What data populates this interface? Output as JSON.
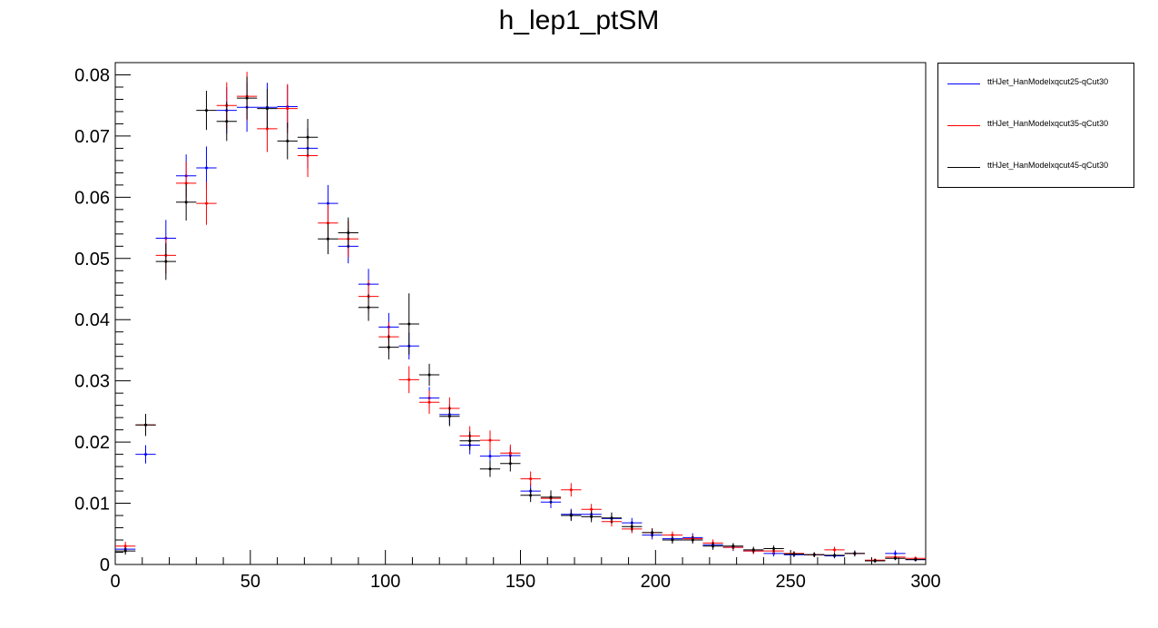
{
  "chart_data": {
    "type": "scatter",
    "title": "h_lep1_ptSM",
    "xlabel": "",
    "ylabel": "",
    "xlim": [
      0,
      300
    ],
    "ylim": [
      0,
      0.082
    ],
    "xticks": [
      0,
      50,
      100,
      150,
      200,
      250,
      300
    ],
    "xtick_labels": [
      "0",
      "50",
      "100",
      "150",
      "200",
      "250",
      "300"
    ],
    "yticks": [
      0,
      0.01,
      0.02,
      0.03,
      0.04,
      0.05,
      0.06,
      0.07,
      0.08
    ],
    "ytick_labels": [
      "0",
      "0.01",
      "0.02",
      "0.03",
      "0.04",
      "0.05",
      "0.06",
      "0.07",
      "0.08"
    ],
    "bin_width": 7.5,
    "x": [
      3.75,
      11.25,
      18.75,
      26.25,
      33.75,
      41.25,
      48.75,
      56.25,
      63.75,
      71.25,
      78.75,
      86.25,
      93.75,
      101.25,
      108.75,
      116.25,
      123.75,
      131.25,
      138.75,
      146.25,
      153.75,
      161.25,
      168.75,
      176.25,
      183.75,
      191.25,
      198.75,
      206.25,
      213.75,
      221.25,
      228.75,
      236.25,
      243.75,
      251.25,
      258.75,
      266.25,
      273.75,
      281.25,
      288.75,
      296.25
    ],
    "legend_position": "top-right, outside plot",
    "grid": false,
    "series": [
      {
        "name": "ttHJet_HanModelxqcut25-qCut30",
        "color": "#0000ff",
        "values": [
          0.0025,
          0.018,
          0.0533,
          0.0635,
          0.0648,
          0.0742,
          0.0747,
          0.0747,
          0.0748,
          0.068,
          0.059,
          0.052,
          0.0458,
          0.0388,
          0.0357,
          0.0272,
          0.0245,
          0.0195,
          0.0177,
          0.0178,
          0.012,
          0.0102,
          0.0082,
          0.0082,
          0.0075,
          0.0068,
          0.0048,
          0.0042,
          0.0044,
          0.0032,
          0.0028,
          0.0022,
          0.0018,
          0.0016,
          0.0016,
          0.0014,
          0.0018,
          0.0006,
          0.0018,
          0.0008
        ],
        "errors": [
          0.0006,
          0.0015,
          0.003,
          0.0035,
          0.0035,
          0.0038,
          0.004,
          0.004,
          0.0035,
          0.0033,
          0.003,
          0.0028,
          0.0025,
          0.0023,
          0.0022,
          0.0018,
          0.0017,
          0.0015,
          0.0015,
          0.0014,
          0.0012,
          0.001,
          0.0009,
          0.0009,
          0.0009,
          0.0008,
          0.0007,
          0.0007,
          0.0007,
          0.0006,
          0.0006,
          0.0005,
          0.0005,
          0.0004,
          0.0004,
          0.0004,
          0.0005,
          0.0003,
          0.0005,
          0.0003
        ]
      },
      {
        "name": "ttHJet_HanModelxqcut35-qCut30",
        "color": "#ff0000",
        "values": [
          0.003,
          0.0228,
          0.0505,
          0.0623,
          0.059,
          0.075,
          0.0765,
          0.0712,
          0.0745,
          0.0668,
          0.0558,
          0.0532,
          0.0438,
          0.0372,
          0.0302,
          0.0265,
          0.0255,
          0.021,
          0.0203,
          0.0182,
          0.014,
          0.0108,
          0.0122,
          0.009,
          0.007,
          0.0058,
          0.0052,
          0.0048,
          0.0042,
          0.0035,
          0.0028,
          0.0022,
          0.0022,
          0.0018,
          0.0016,
          0.0024,
          0.0018,
          0.0007,
          0.0012,
          0.001
        ],
        "errors": [
          0.0007,
          0.0018,
          0.003,
          0.0035,
          0.0035,
          0.0038,
          0.004,
          0.0038,
          0.004,
          0.0035,
          0.003,
          0.003,
          0.0027,
          0.0024,
          0.0022,
          0.0019,
          0.0018,
          0.0016,
          0.0016,
          0.0014,
          0.0012,
          0.001,
          0.0011,
          0.0009,
          0.0008,
          0.0007,
          0.0007,
          0.0006,
          0.0006,
          0.0006,
          0.0005,
          0.0005,
          0.0005,
          0.0004,
          0.0004,
          0.0005,
          0.0004,
          0.0003,
          0.0003,
          0.0003
        ]
      },
      {
        "name": "ttHJet_HanModelxqcut45-qCut30",
        "color": "#000000",
        "values": [
          0.0022,
          0.0228,
          0.0495,
          0.0592,
          0.0742,
          0.0724,
          0.0762,
          0.0745,
          0.0692,
          0.0698,
          0.0532,
          0.0542,
          0.042,
          0.0355,
          0.0393,
          0.031,
          0.0242,
          0.0202,
          0.0156,
          0.0165,
          0.0113,
          0.011,
          0.008,
          0.0078,
          0.0076,
          0.0062,
          0.0052,
          0.004,
          0.004,
          0.003,
          0.003,
          0.0024,
          0.0026,
          0.0017,
          0.0016,
          0.0015,
          0.0018,
          0.0006,
          0.001,
          0.0008
        ],
        "errors": [
          0.0006,
          0.0018,
          0.003,
          0.003,
          0.0032,
          0.0032,
          0.0035,
          0.0032,
          0.003,
          0.003,
          0.0025,
          0.0025,
          0.0022,
          0.002,
          0.005,
          0.0018,
          0.0016,
          0.0015,
          0.0013,
          0.0013,
          0.0011,
          0.0011,
          0.0009,
          0.0009,
          0.0009,
          0.0008,
          0.0007,
          0.0006,
          0.0006,
          0.0006,
          0.0005,
          0.0005,
          0.0005,
          0.0004,
          0.0004,
          0.0004,
          0.0004,
          0.0003,
          0.0003,
          0.0003
        ]
      }
    ]
  }
}
